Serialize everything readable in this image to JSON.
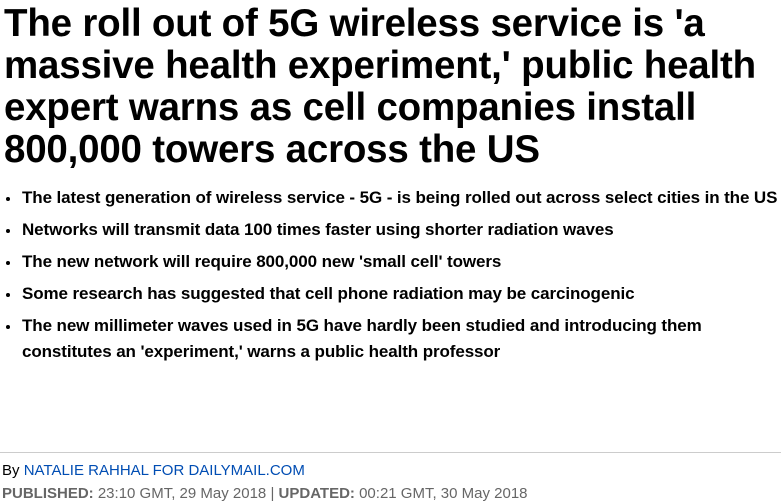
{
  "headline": "The roll out of 5G wireless service is 'a massive health experiment,' public health expert warns as cell companies install 800,000 towers across the US",
  "bullets": [
    "The latest generation of wireless service - 5G - is being rolled out across select cities in the US",
    "Networks will transmit data 100 times faster using shorter radiation waves",
    "The new network will require 800,000 new 'small cell' towers",
    "Some research has suggested that cell phone radiation may be carcinogenic",
    "The new millimeter waves used in 5G have hardly been studied and introducing them constitutes an 'experiment,' warns a public health professor"
  ],
  "byline": {
    "prefix": "By",
    "author": "NATALIE RAHHAL FOR DAILYMAIL.COM"
  },
  "dates": {
    "published_label": "PUBLISHED:",
    "published": "23:10 GMT, 29 May 2018",
    "separator": "|",
    "updated_label": "UPDATED:",
    "updated": "00:21 GMT, 30 May 2018"
  }
}
